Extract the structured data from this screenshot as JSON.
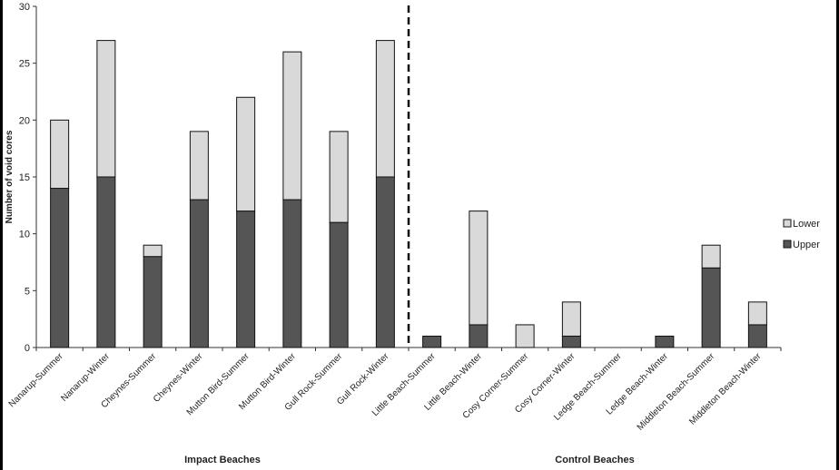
{
  "chart_data": {
    "type": "bar",
    "stacked": true,
    "ylabel": "Number of void cores",
    "ylim": [
      0,
      30
    ],
    "yticks": [
      0,
      5,
      10,
      15,
      20,
      25,
      30
    ],
    "categories": [
      "Nanarup-Summer",
      "Nanarup-Winter",
      "Cheynes-Summer",
      "Cheynes-Winter",
      "Mutton Bird-Summer",
      "Mutton Bird-Winter",
      "Gull Rock-Summer",
      "Gull Rock-Winter",
      "Little Beach-Summer",
      "Little Beach-Winter",
      "Cosy Corner-Summer",
      "Cosy Corner-Winter",
      "Ledge Beach-Summer",
      "Ledge Beach-Winter",
      "Middleton Beach-Summer",
      "Middleton Beach-Winter"
    ],
    "series": [
      {
        "name": "Upper",
        "color": "#555555",
        "values": [
          14,
          15,
          8,
          13,
          12,
          13,
          11,
          15,
          1,
          2,
          0,
          1,
          0,
          1,
          7,
          2
        ]
      },
      {
        "name": "Lower",
        "color": "#d9d9d9",
        "values": [
          6,
          12,
          1,
          6,
          10,
          13,
          8,
          12,
          0,
          10,
          2,
          3,
          0,
          0,
          2,
          2
        ]
      }
    ],
    "legend": [
      "Lower",
      "Upper"
    ],
    "legend_position": "right",
    "groups": [
      {
        "label": "Impact Beaches"
      },
      {
        "label": "Control Beaches"
      }
    ],
    "divider": "dashed vertical line between Gull Rock-Winter and Little Beach-Summer",
    "grid": false
  }
}
